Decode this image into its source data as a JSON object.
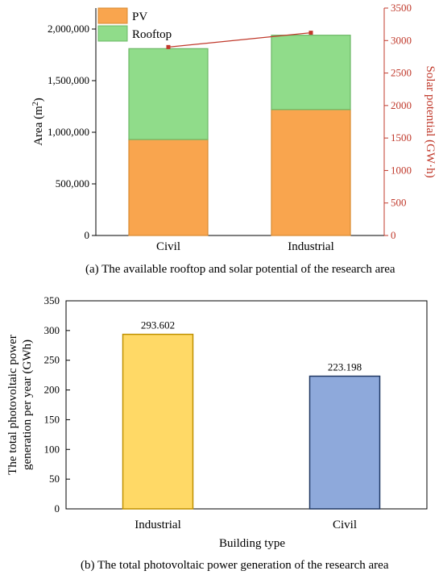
{
  "chart_data": [
    {
      "type": "bar",
      "stacked": true,
      "caption": "(a) The available rooftop and solar potential of the research area",
      "categories": [
        "Civil",
        "Industrial"
      ],
      "series": [
        {
          "name": "PV",
          "values": [
            930000,
            1220000
          ],
          "color": "#F9A54E"
        },
        {
          "name": "Rooftop",
          "values": [
            880000,
            720000
          ],
          "color": "#90DC8A"
        }
      ],
      "line_series": {
        "values": [
          2900,
          3120
        ],
        "color": "#c0392b",
        "axis": "right"
      },
      "ylabel": "Area (m2)",
      "ylabel_main": "Area (m",
      "ylabel_sup": "2",
      "ylabel_end": ")",
      "ylim": [
        0,
        2000000
      ],
      "yticks": [
        0,
        500000,
        1000000,
        1500000,
        2000000
      ],
      "ytick_labels": [
        "0",
        "500,000",
        "1,000,000",
        "1,500,000",
        "2,000,000"
      ],
      "y2label": "Solar potential (GW·h)",
      "y2lim": [
        0,
        3500
      ],
      "y2ticks": [
        0,
        500,
        1000,
        1500,
        2000,
        2500,
        3000,
        3500
      ],
      "y2tick_labels": [
        "0",
        "500",
        "1000",
        "1500",
        "2000",
        "2500",
        "3000",
        "3500"
      ],
      "legend_position": "top-left",
      "legend_labels": [
        "PV",
        "Rooftop"
      ]
    },
    {
      "type": "bar",
      "caption": "(b) The total photovoltaic power generation of the research area",
      "categories": [
        "Industrial",
        "Civil"
      ],
      "values": [
        293.602,
        223.198
      ],
      "value_labels": [
        "293.602",
        "223.198"
      ],
      "colors": [
        "#FFD966",
        "#8EA9DB"
      ],
      "edge_colors": [
        "#BF9000",
        "#203864"
      ],
      "xlabel": "Building type",
      "ylabel_line1": "The total photovoltaic power",
      "ylabel_line2": "generation per year (GWh)",
      "ylim": [
        0,
        350
      ],
      "yticks": [
        0,
        50,
        100,
        150,
        200,
        250,
        300,
        350
      ],
      "ytick_labels": [
        "0",
        "50",
        "100",
        "150",
        "200",
        "250",
        "300",
        "350"
      ]
    }
  ]
}
